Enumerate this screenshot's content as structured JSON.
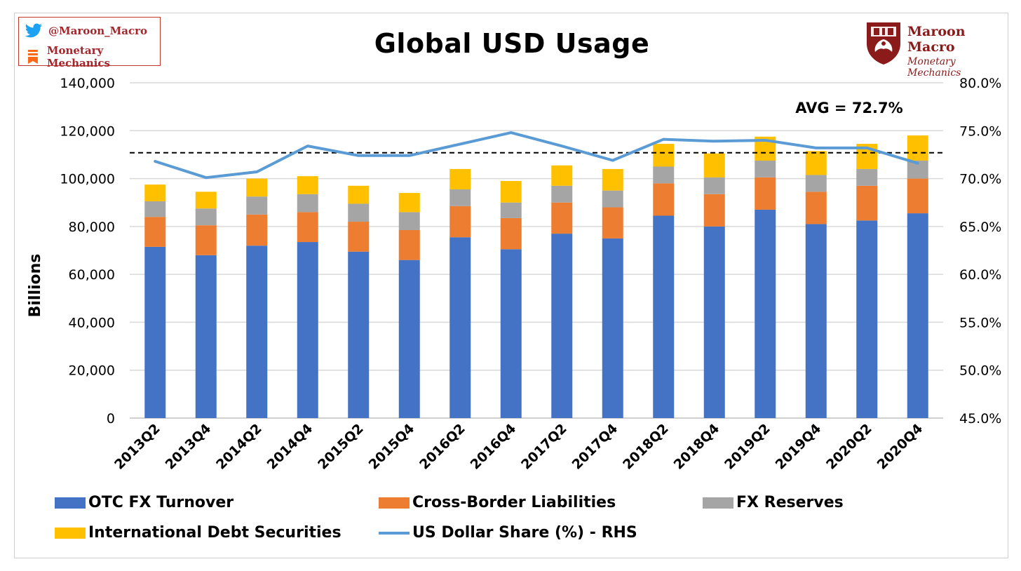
{
  "header": {
    "title": "Global USD Usage",
    "social": {
      "twitter_handle": "@Maroon_Macro",
      "newsletter": "Monetary Mechanics"
    },
    "logo": {
      "name": "Maroon Macro",
      "subtitle": "Monetary Mechanics"
    }
  },
  "colors": {
    "otc": "#4472c4",
    "cross_border": "#ed7d31",
    "reserves": "#a5a5a5",
    "debt": "#ffc000",
    "share_line": "#5b9bd5",
    "brand": "#8b1a1a",
    "twitter": "#1da1f2",
    "substack": "#ff6719"
  },
  "icons": [
    "twitter-icon",
    "substack-icon",
    "crest-icon"
  ],
  "chart_data": {
    "type": "bar",
    "stacked": true,
    "title": "Global USD Usage",
    "ylabel": "Billions",
    "y2label": "",
    "ylim": [
      0,
      140000
    ],
    "y2lim": [
      45.0,
      80.0
    ],
    "y_ticks": [
      "0",
      "20,000",
      "40,000",
      "60,000",
      "80,000",
      "100,000",
      "120,000",
      "140,000"
    ],
    "y2_ticks": [
      "45.0%",
      "50.0%",
      "55.0%",
      "60.0%",
      "65.0%",
      "70.0%",
      "75.0%",
      "80.0%"
    ],
    "categories": [
      "2013Q2",
      "2013Q4",
      "2014Q2",
      "2014Q4",
      "2015Q2",
      "2015Q4",
      "2016Q2",
      "2016Q4",
      "2017Q2",
      "2017Q4",
      "2018Q2",
      "2018Q4",
      "2019Q2",
      "2019Q4",
      "2020Q2",
      "2020Q4"
    ],
    "series": [
      {
        "name": "OTC FX Turnover",
        "color": "#4472c4",
        "values": [
          71500,
          68000,
          72000,
          73500,
          69500,
          66000,
          75500,
          70500,
          77000,
          75000,
          84500,
          80000,
          87000,
          81000,
          82500,
          85500
        ]
      },
      {
        "name": "Cross-Border Liabilities",
        "color": "#ed7d31",
        "values": [
          12500,
          12500,
          13000,
          12500,
          12500,
          12500,
          13000,
          13000,
          13000,
          13000,
          13500,
          13500,
          13500,
          13500,
          14500,
          14500
        ]
      },
      {
        "name": "FX Reserves",
        "color": "#a5a5a5",
        "values": [
          6500,
          7000,
          7500,
          7500,
          7500,
          7500,
          7000,
          6500,
          7000,
          7000,
          7000,
          7000,
          7000,
          7000,
          7000,
          7500
        ]
      },
      {
        "name": "International Debt Securities",
        "color": "#ffc000",
        "values": [
          7000,
          7000,
          7500,
          7500,
          7500,
          8000,
          8500,
          9000,
          8500,
          9000,
          9500,
          10000,
          10000,
          10000,
          10500,
          10500
        ]
      }
    ],
    "line_series": {
      "name": "US Dollar Share (%) - RHS",
      "color": "#5b9bd5",
      "axis": "right",
      "values": [
        71.8,
        70.1,
        70.7,
        73.4,
        72.4,
        72.4,
        73.6,
        74.8,
        73.4,
        71.9,
        74.1,
        73.9,
        74.0,
        73.2,
        73.2,
        71.6
      ]
    },
    "reference_line": {
      "value": 72.7,
      "label": "AVG = 72.7%",
      "style": "dashed",
      "axis": "right"
    },
    "grid": true,
    "legend_position": "bottom"
  }
}
